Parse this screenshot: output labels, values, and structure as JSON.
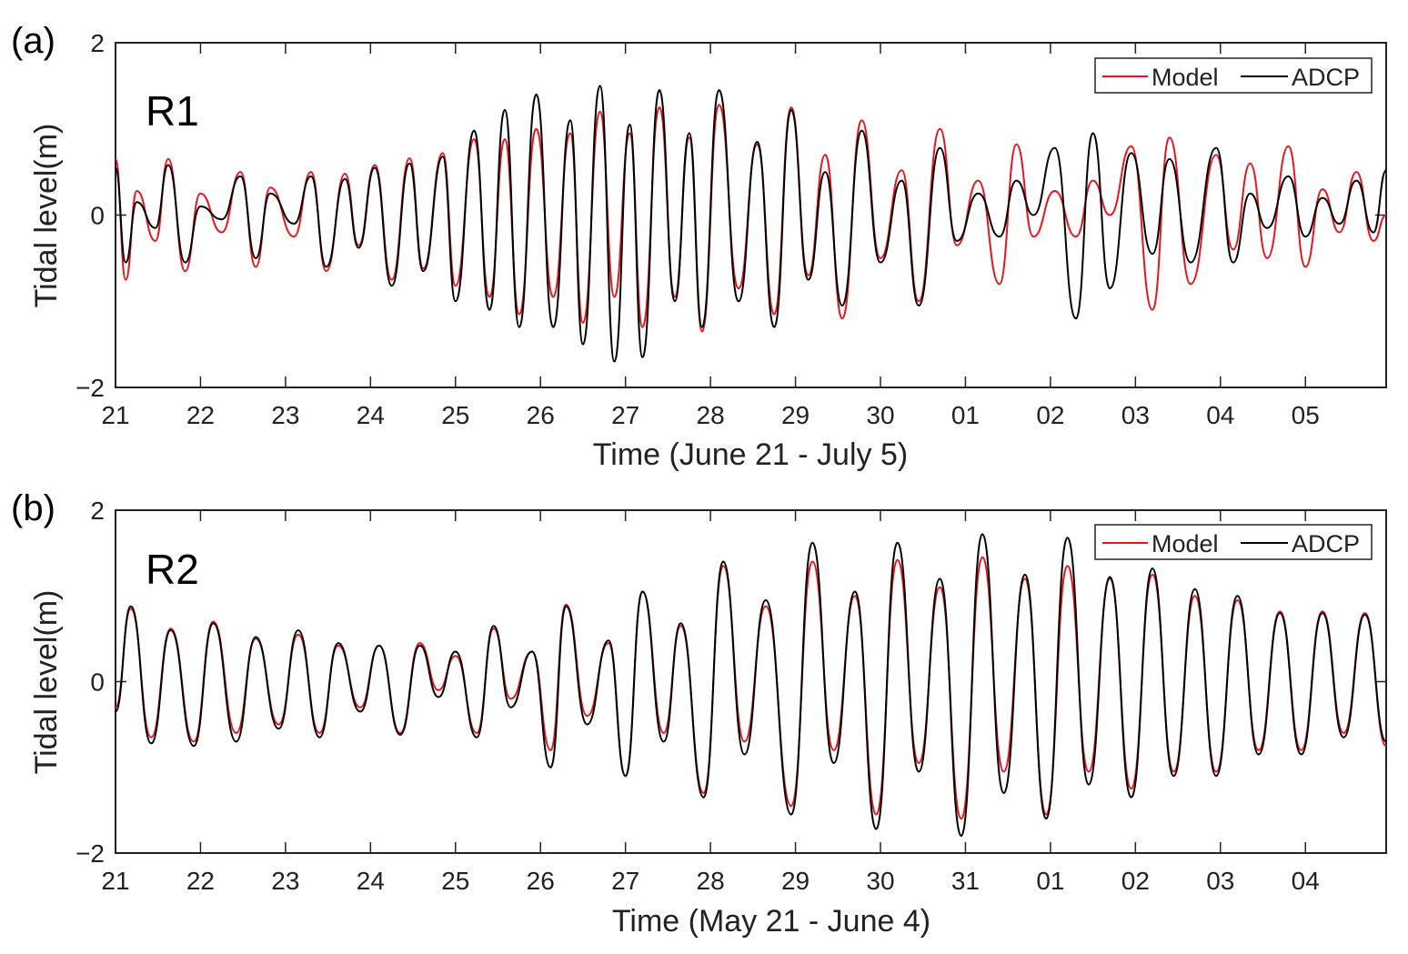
{
  "chart_data": [
    {
      "type": "line",
      "panel_label": "(a)",
      "station_label": "R1",
      "xlabel": "Time (June 21 - July 5)",
      "ylabel": "Tidal level(m)",
      "ylim": [
        -2,
        2
      ],
      "yticks": [
        -2,
        0,
        2
      ],
      "ytick_labels": [
        "−2",
        "0",
        "2"
      ],
      "xlim": [
        0,
        14.95
      ],
      "xticks": [
        0,
        1,
        2,
        3,
        4,
        5,
        6,
        7,
        8,
        9,
        10,
        11,
        12,
        13,
        14
      ],
      "xtick_labels": [
        "21",
        "22",
        "23",
        "24",
        "25",
        "26",
        "27",
        "28",
        "29",
        "30",
        "01",
        "02",
        "03",
        "04",
        "05"
      ],
      "legend_position": "top-right",
      "colors": {
        "Model": "#e8141b",
        "ADCP": "#000000"
      },
      "series": [
        {
          "name": "Model",
          "x": [
            0,
            0.12,
            0.25,
            0.47,
            0.62,
            0.82,
            1.0,
            1.25,
            1.47,
            1.65,
            1.82,
            2.1,
            2.3,
            2.48,
            2.7,
            2.86,
            3.05,
            3.25,
            3.46,
            3.62,
            3.85,
            4.0,
            4.22,
            4.4,
            4.58,
            4.75,
            4.95,
            5.15,
            5.35,
            5.5,
            5.7,
            5.87,
            6.05,
            6.2,
            6.4,
            6.58,
            6.75,
            6.9,
            7.1,
            7.33,
            7.55,
            7.75,
            7.95,
            8.15,
            8.35,
            8.55,
            8.78,
            9.0,
            9.25,
            9.45,
            9.7,
            9.9,
            10.15,
            10.4,
            10.6,
            10.8,
            11.05,
            11.3,
            11.5,
            11.7,
            11.95,
            12.2,
            12.4,
            12.65,
            12.95,
            13.15,
            13.35,
            13.55,
            13.8,
            14.0,
            14.2,
            14.4,
            14.6,
            14.8,
            14.95
          ],
          "y": [
            0.65,
            -0.75,
            0.28,
            -0.3,
            0.65,
            -0.65,
            0.25,
            -0.2,
            0.5,
            -0.6,
            0.32,
            -0.25,
            0.5,
            -0.65,
            0.48,
            -0.35,
            0.58,
            -0.75,
            0.66,
            -0.62,
            0.72,
            -0.82,
            0.88,
            -0.95,
            0.88,
            -1.15,
            1.0,
            -0.95,
            0.95,
            -1.25,
            1.2,
            -0.95,
            0.95,
            -1.3,
            1.25,
            -0.95,
            0.9,
            -1.35,
            1.28,
            -0.85,
            0.82,
            -1.15,
            1.25,
            -0.7,
            0.7,
            -1.2,
            1.1,
            -0.5,
            0.52,
            -1.0,
            1.0,
            -0.35,
            0.4,
            -0.8,
            0.82,
            -0.25,
            0.28,
            -0.25,
            0.4,
            0.0,
            0.8,
            -1.1,
            0.9,
            -0.8,
            0.7,
            -0.4,
            0.6,
            -0.5,
            0.8,
            -0.6,
            0.3,
            -0.2,
            0.5,
            -0.3,
            0.0
          ]
        },
        {
          "name": "ADCP",
          "x": [
            0,
            0.12,
            0.25,
            0.47,
            0.62,
            0.82,
            1.0,
            1.25,
            1.47,
            1.65,
            1.82,
            2.1,
            2.3,
            2.48,
            2.7,
            2.86,
            3.05,
            3.25,
            3.46,
            3.62,
            3.85,
            4.0,
            4.22,
            4.4,
            4.58,
            4.75,
            4.95,
            5.15,
            5.35,
            5.5,
            5.7,
            5.87,
            6.05,
            6.2,
            6.4,
            6.58,
            6.75,
            6.9,
            7.1,
            7.33,
            7.55,
            7.75,
            7.95,
            8.15,
            8.35,
            8.55,
            8.78,
            9.0,
            9.25,
            9.45,
            9.7,
            9.9,
            10.15,
            10.4,
            10.6,
            10.8,
            11.05,
            11.3,
            11.5,
            11.7,
            11.95,
            12.2,
            12.4,
            12.65,
            12.95,
            13.15,
            13.35,
            13.55,
            13.8,
            14.0,
            14.2,
            14.4,
            14.6,
            14.8,
            14.95
          ],
          "y": [
            0.55,
            -0.55,
            0.15,
            -0.15,
            0.58,
            -0.55,
            0.1,
            -0.05,
            0.45,
            -0.5,
            0.25,
            -0.1,
            0.45,
            -0.6,
            0.42,
            -0.38,
            0.55,
            -0.82,
            0.6,
            -0.65,
            0.68,
            -1.0,
            0.98,
            -1.1,
            1.22,
            -1.3,
            1.4,
            -1.3,
            1.1,
            -1.5,
            1.5,
            -1.7,
            1.05,
            -1.65,
            1.45,
            -1.0,
            0.95,
            -1.3,
            1.45,
            -1.0,
            0.85,
            -1.3,
            1.22,
            -0.75,
            0.5,
            -1.05,
            0.98,
            -0.55,
            0.4,
            -1.05,
            0.78,
            -0.3,
            0.25,
            -0.25,
            0.4,
            0.0,
            0.78,
            -1.2,
            0.95,
            -0.85,
            0.72,
            -0.45,
            0.65,
            -0.55,
            0.78,
            -0.55,
            0.25,
            -0.15,
            0.45,
            -0.25,
            0.2,
            -0.1,
            0.4,
            -0.2,
            0.52
          ]
        }
      ]
    },
    {
      "type": "line",
      "panel_label": "(b)",
      "station_label": "R2",
      "xlabel": "Time (May 21 - June 4)",
      "ylabel": "Tidal level(m)",
      "ylim": [
        -2,
        2
      ],
      "yticks": [
        -2,
        0,
        2
      ],
      "ytick_labels": [
        "−2",
        "0",
        "2"
      ],
      "xlim": [
        0,
        14.95
      ],
      "xticks": [
        0,
        1,
        2,
        3,
        4,
        5,
        6,
        7,
        8,
        9,
        10,
        11,
        12,
        13,
        14
      ],
      "xtick_labels": [
        "21",
        "22",
        "23",
        "24",
        "25",
        "26",
        "27",
        "28",
        "29",
        "30",
        "31",
        "01",
        "02",
        "03",
        "04"
      ],
      "legend_position": "top-right",
      "colors": {
        "Model": "#e8141b",
        "ADCP": "#000000"
      },
      "series": [
        {
          "name": "Model",
          "x": [
            0,
            0.18,
            0.42,
            0.65,
            0.92,
            1.15,
            1.42,
            1.65,
            1.92,
            2.15,
            2.4,
            2.62,
            2.88,
            3.1,
            3.35,
            3.58,
            3.8,
            4.0,
            4.25,
            4.45,
            4.65,
            4.9,
            5.12,
            5.3,
            5.55,
            5.8,
            6.0,
            6.2,
            6.45,
            6.65,
            6.92,
            7.15,
            7.4,
            7.65,
            7.95,
            8.2,
            8.45,
            8.7,
            8.95,
            9.2,
            9.45,
            9.7,
            9.95,
            10.2,
            10.45,
            10.7,
            10.95,
            11.2,
            11.45,
            11.7,
            11.95,
            12.2,
            12.45,
            12.7,
            12.95,
            13.2,
            13.45,
            13.7,
            13.95,
            14.2,
            14.45,
            14.7,
            14.95
          ],
          "y": [
            -0.3,
            0.85,
            -0.65,
            0.62,
            -0.7,
            0.7,
            -0.6,
            0.5,
            -0.5,
            0.55,
            -0.6,
            0.42,
            -0.3,
            0.42,
            -0.6,
            0.45,
            -0.1,
            0.3,
            -0.6,
            0.62,
            -0.2,
            0.35,
            -0.8,
            0.9,
            -0.4,
            0.45,
            -1.1,
            1.05,
            -0.6,
            0.65,
            -1.3,
            1.35,
            -0.7,
            0.88,
            -1.45,
            1.4,
            -0.8,
            1.0,
            -1.55,
            1.42,
            -0.95,
            1.1,
            -1.6,
            1.45,
            -1.05,
            1.2,
            -1.55,
            1.35,
            -1.05,
            1.2,
            -1.25,
            1.25,
            -1.05,
            1.0,
            -1.05,
            0.95,
            -0.8,
            0.82,
            -0.8,
            0.82,
            -0.6,
            0.8,
            -0.75
          ]
        },
        {
          "name": "ADCP",
          "x": [
            0,
            0.18,
            0.42,
            0.65,
            0.92,
            1.15,
            1.42,
            1.65,
            1.92,
            2.15,
            2.4,
            2.62,
            2.88,
            3.1,
            3.35,
            3.58,
            3.8,
            4.0,
            4.25,
            4.45,
            4.65,
            4.9,
            5.12,
            5.3,
            5.55,
            5.8,
            6.0,
            6.2,
            6.45,
            6.65,
            6.92,
            7.15,
            7.4,
            7.65,
            7.95,
            8.2,
            8.45,
            8.7,
            8.95,
            9.2,
            9.45,
            9.7,
            9.95,
            10.2,
            10.45,
            10.7,
            10.95,
            11.2,
            11.45,
            11.7,
            11.95,
            12.2,
            12.45,
            12.7,
            12.95,
            13.2,
            13.45,
            13.7,
            13.95,
            14.2,
            14.45,
            14.7,
            14.95
          ],
          "y": [
            -0.35,
            0.88,
            -0.72,
            0.6,
            -0.75,
            0.68,
            -0.7,
            0.52,
            -0.55,
            0.6,
            -0.65,
            0.45,
            -0.35,
            0.42,
            -0.62,
            0.42,
            -0.18,
            0.35,
            -0.65,
            0.65,
            -0.3,
            0.35,
            -1.0,
            0.88,
            -0.5,
            0.48,
            -1.1,
            1.05,
            -0.7,
            0.68,
            -1.35,
            1.4,
            -0.85,
            0.95,
            -1.55,
            1.62,
            -0.95,
            1.05,
            -1.72,
            1.62,
            -1.05,
            1.2,
            -1.8,
            1.72,
            -1.3,
            1.25,
            -1.6,
            1.68,
            -1.2,
            1.22,
            -1.35,
            1.32,
            -1.1,
            1.08,
            -1.1,
            1.0,
            -0.85,
            0.8,
            -0.85,
            0.8,
            -0.65,
            0.78,
            -0.7
          ]
        }
      ]
    }
  ],
  "legend": [
    {
      "label": "Model",
      "color": "#e8141b"
    },
    {
      "label": "ADCP",
      "color": "#000000"
    }
  ]
}
